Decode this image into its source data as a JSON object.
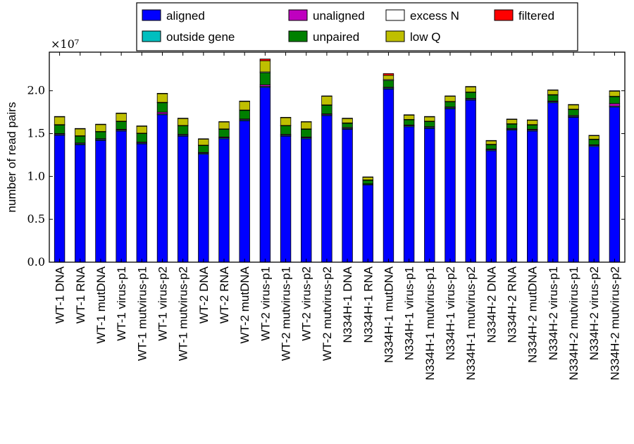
{
  "chart_data": {
    "type": "bar",
    "stacked": true,
    "ylabel": "number of read pairs",
    "y_multiplier": "×10⁷",
    "ylim": [
      0,
      2.45
    ],
    "y_ticks": [
      "0.0",
      "0.5",
      "1.0",
      "1.5",
      "2.0"
    ],
    "legend": {
      "placement": "top-center",
      "columns": 4
    },
    "categories": [
      "WT-1 DNA",
      "WT-1 RNA",
      "WT-1 mutDNA",
      "WT-1 virus-p1",
      "WT-1 mutvirus-p1",
      "WT-1 virus-p2",
      "WT-1 mutvirus-p2",
      "WT-2 DNA",
      "WT-2 RNA",
      "WT-2 mutDNA",
      "WT-2 virus-p1",
      "WT-2 mutvirus-p1",
      "WT-2 virus-p2",
      "WT-2 mutvirus-p2",
      "N334H-1 DNA",
      "N334H-1 RNA",
      "N334H-1 mutDNA",
      "N334H-1 virus-p1",
      "N334H-1 mutvirus-p1",
      "N334H-1 virus-p2",
      "N334H-1 mutvirus-p2",
      "N334H-2 DNA",
      "N334H-2 RNA",
      "N334H-2 mutDNA",
      "N334H-2 virus-p1",
      "N334H-2 mutvirus-p1",
      "N334H-2 virus-p2",
      "N334H-2 mutvirus-p2"
    ],
    "series": [
      {
        "name": "aligned",
        "color": "#0000ff",
        "values": [
          1.48,
          1.37,
          1.42,
          1.53,
          1.38,
          1.72,
          1.47,
          1.26,
          1.44,
          1.65,
          2.04,
          1.47,
          1.44,
          1.71,
          1.55,
          0.9,
          2.02,
          1.58,
          1.56,
          1.79,
          1.89,
          1.3,
          1.54,
          1.53,
          1.86,
          1.69,
          1.35,
          1.81
        ]
      },
      {
        "name": "outside gene",
        "color": "#00bfbf",
        "values": [
          0.01,
          0.01,
          0.01,
          0.01,
          0.01,
          0.01,
          0.01,
          0.01,
          0.01,
          0.01,
          0.01,
          0.01,
          0.01,
          0.01,
          0.01,
          0.01,
          0.01,
          0.01,
          0.01,
          0.01,
          0.01,
          0.01,
          0.01,
          0.01,
          0.01,
          0.01,
          0.01,
          0.01
        ]
      },
      {
        "name": "unaligned",
        "color": "#bf00bf",
        "values": [
          0.01,
          0.01,
          0.01,
          0.01,
          0.01,
          0.02,
          0.01,
          0.01,
          0.01,
          0.01,
          0.02,
          0.01,
          0.01,
          0.01,
          0.01,
          0.005,
          0.01,
          0.01,
          0.01,
          0.01,
          0.01,
          0.01,
          0.01,
          0.01,
          0.01,
          0.01,
          0.01,
          0.03
        ]
      },
      {
        "name": "unpaired",
        "color": "#008000",
        "values": [
          0.1,
          0.08,
          0.08,
          0.09,
          0.1,
          0.11,
          0.1,
          0.08,
          0.09,
          0.1,
          0.14,
          0.1,
          0.09,
          0.1,
          0.05,
          0.04,
          0.08,
          0.06,
          0.06,
          0.06,
          0.07,
          0.05,
          0.05,
          0.05,
          0.07,
          0.07,
          0.06,
          0.08
        ]
      },
      {
        "name": "excess N",
        "color": "#ffffff",
        "values": [
          0.005,
          0.005,
          0.005,
          0.005,
          0.005,
          0.005,
          0.005,
          0.005,
          0.005,
          0.005,
          0.01,
          0.005,
          0.005,
          0.005,
          0.005,
          0.005,
          0.01,
          0.005,
          0.005,
          0.005,
          0.005,
          0.005,
          0.005,
          0.005,
          0.005,
          0.005,
          0.005,
          0.005
        ]
      },
      {
        "name": "low Q",
        "color": "#bfbf00",
        "values": [
          0.09,
          0.08,
          0.08,
          0.09,
          0.08,
          0.1,
          0.08,
          0.07,
          0.08,
          0.1,
          0.13,
          0.09,
          0.08,
          0.1,
          0.05,
          0.03,
          0.05,
          0.05,
          0.05,
          0.06,
          0.06,
          0.04,
          0.05,
          0.05,
          0.05,
          0.05,
          0.04,
          0.06
        ]
      },
      {
        "name": "filtered",
        "color": "#ff0000",
        "values": [
          0.005,
          0.005,
          0.005,
          0.005,
          0.005,
          0.005,
          0.005,
          0.005,
          0.005,
          0.005,
          0.02,
          0.005,
          0.005,
          0.005,
          0.005,
          0.005,
          0.02,
          0.005,
          0.005,
          0.005,
          0.005,
          0.005,
          0.005,
          0.005,
          0.005,
          0.005,
          0.005,
          0.005
        ]
      }
    ],
    "legend_order": [
      "aligned",
      "unaligned",
      "excess N",
      "filtered",
      "outside gene",
      "unpaired",
      "low Q"
    ]
  }
}
